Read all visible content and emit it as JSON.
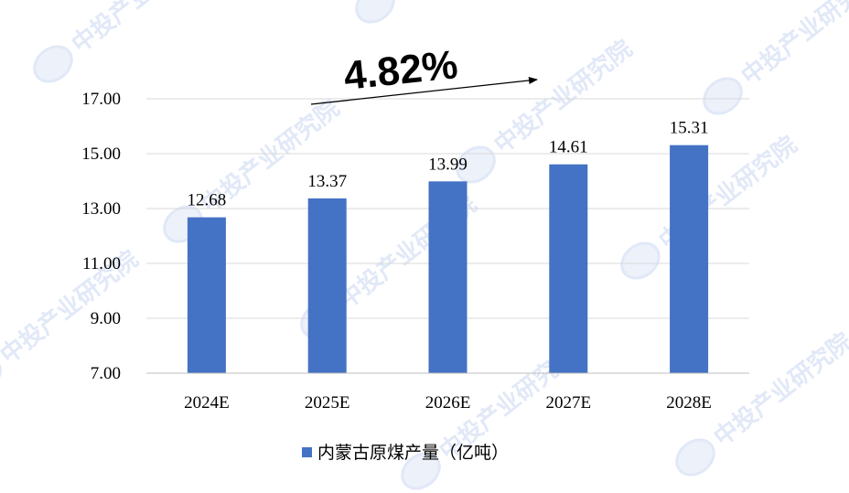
{
  "chart_data": {
    "type": "bar",
    "categories": [
      "2024E",
      "2025E",
      "2026E",
      "2027E",
      "2028E"
    ],
    "series": [
      {
        "name": "内蒙古原煤产量（亿吨）",
        "values": [
          12.68,
          13.37,
          13.99,
          14.61,
          15.31
        ],
        "color": "#4472C4"
      }
    ],
    "data_labels": [
      "12.68",
      "13.37",
      "13.99",
      "14.61",
      "15.31"
    ],
    "yticks": [
      "7.00",
      "9.00",
      "11.00",
      "13.00",
      "15.00",
      "17.00"
    ],
    "ylim": [
      7,
      17
    ],
    "grid": true,
    "legend_position": "bottom",
    "annotation": {
      "text": "4.82%"
    },
    "watermark": {
      "text": "中投产业研究院"
    }
  }
}
